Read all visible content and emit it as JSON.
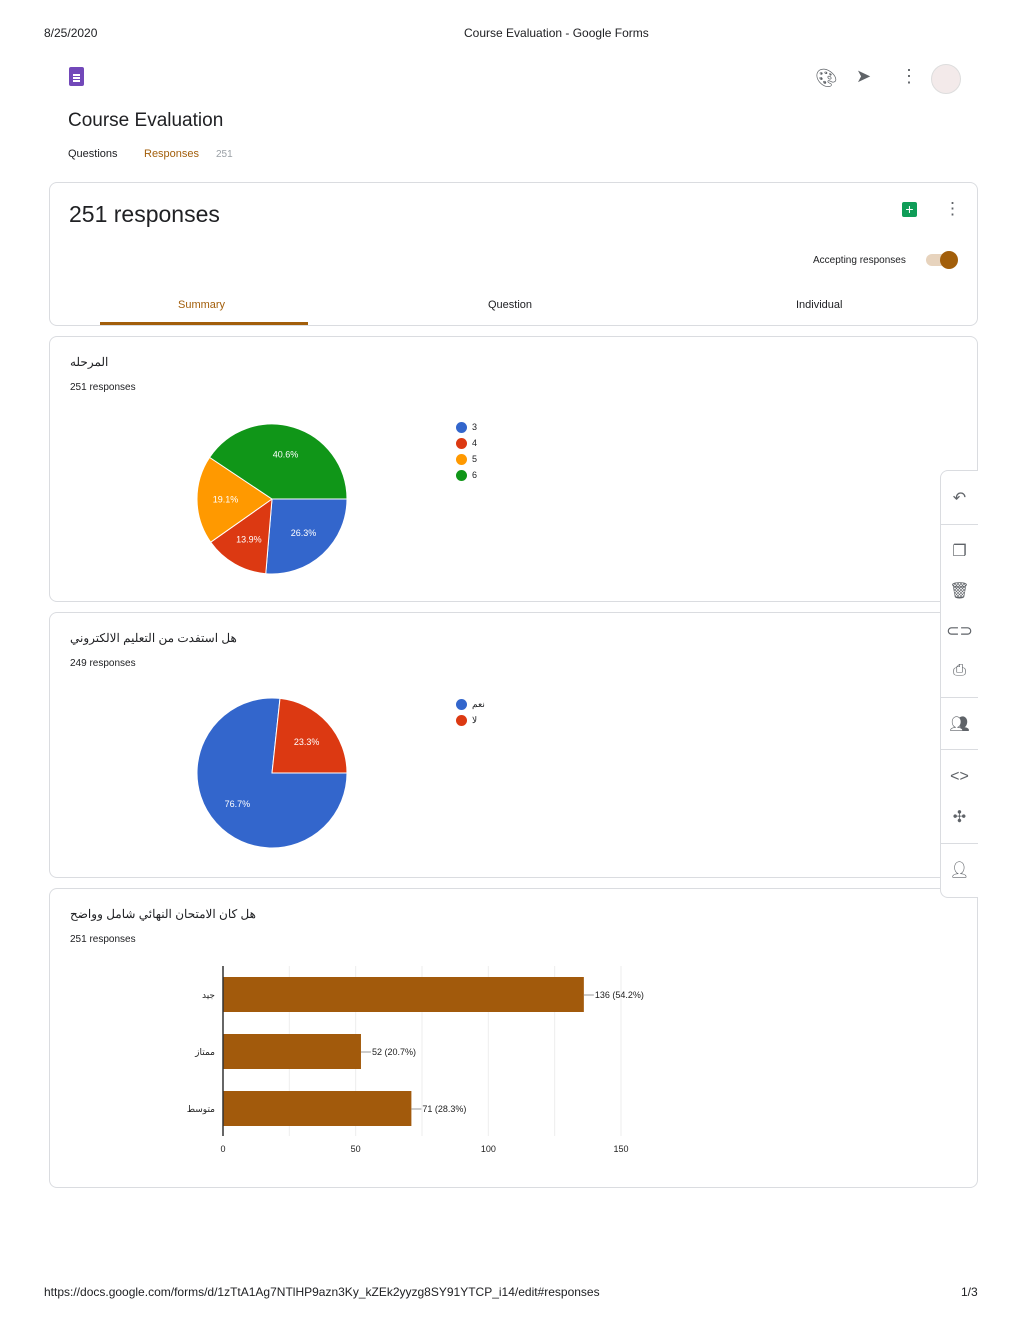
{
  "print_header": {
    "date": "8/25/2020",
    "title": "Course Evaluation - Google Forms"
  },
  "print_footer": {
    "url": "https://docs.google.com/forms/d/1zTtA1Ag7NTlHP9azn3Ky_kZEk2yyzg8SY91YTCP_i14/edit#responses",
    "page": "1/3"
  },
  "form": {
    "title": "Course Evaluation",
    "tabs": [
      {
        "label": "Questions"
      },
      {
        "label": "Responses",
        "count": "251"
      }
    ]
  },
  "colors": {
    "accent": "#a25e0a",
    "blue": "#3366cc",
    "red": "#dc3912",
    "orange": "#ff9900",
    "green": "#109618",
    "bar": "#a25a0c"
  },
  "summary": {
    "heading": "251 responses",
    "accepting_label": "Accepting responses",
    "accepting": true,
    "tabs": [
      "Summary",
      "Question",
      "Individual"
    ]
  },
  "questions": [
    {
      "title": "المرحله",
      "responses": "251 responses",
      "chart_data": {
        "type": "pie",
        "categories": [
          "3",
          "4",
          "5",
          "6"
        ],
        "values": [
          26.3,
          13.9,
          19.1,
          40.6
        ],
        "labels": [
          "26.3%",
          "13.9%",
          "19.1%",
          "40.6%"
        ],
        "legend": "right"
      }
    },
    {
      "title": "هل استفدت من التعليم الالكتروني",
      "responses": "249 responses",
      "chart_data": {
        "type": "pie",
        "categories": [
          "نعم",
          "لا"
        ],
        "values": [
          76.7,
          23.3
        ],
        "labels": [
          "76.7%",
          "23.3%"
        ],
        "legend": "right"
      }
    },
    {
      "title": "هل كان الامتحان النهائي شامل وواضح",
      "responses": "251 responses",
      "chart_data": {
        "type": "bar",
        "orientation": "horizontal",
        "categories": [
          "جيد",
          "ممتاز",
          "متوسط"
        ],
        "values": [
          136,
          52,
          71
        ],
        "labels": [
          "136 (54.2%)",
          "52 (20.7%)",
          "71 (28.3%)"
        ],
        "xlim": [
          0,
          150
        ],
        "xticks": [
          "0",
          "50",
          "100",
          "150"
        ],
        "grid": true
      }
    }
  ],
  "side_toolbar": [
    "undo-icon",
    "copy-icon",
    "trash-icon",
    "link-icon",
    "print-icon",
    "add-collaborators-icon",
    "embed-icon",
    "addon-icon",
    "add-person-icon"
  ]
}
